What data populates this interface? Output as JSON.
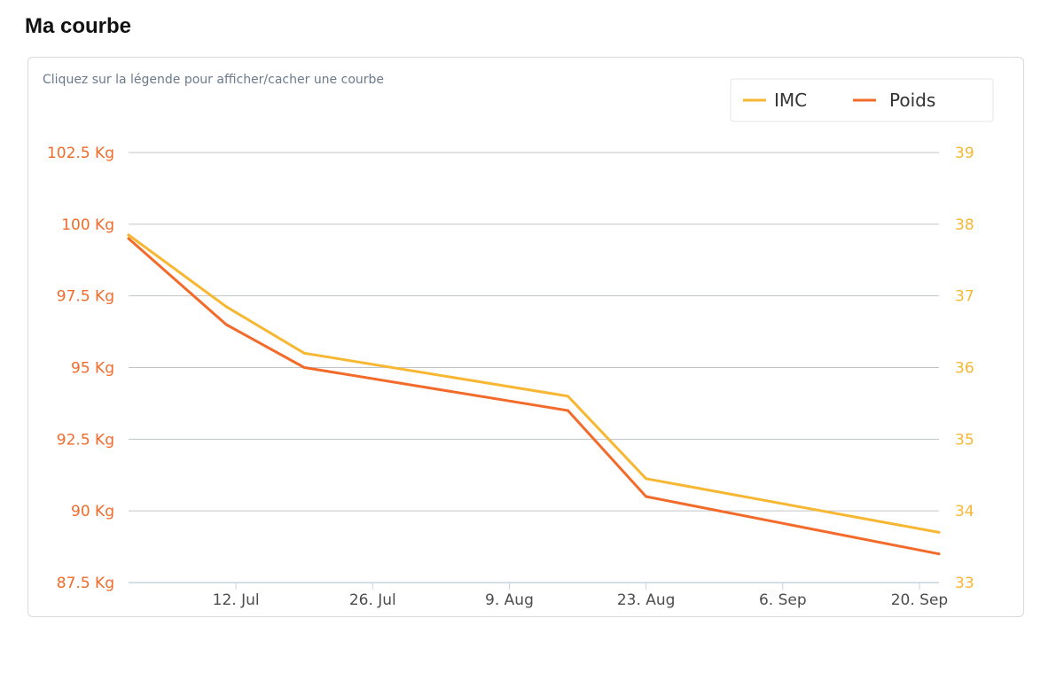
{
  "page": {
    "title": "Ma courbe"
  },
  "chart_data": {
    "type": "line",
    "hint": "Cliquez sur la légende pour afficher/cacher une courbe",
    "grid": true,
    "legend_position": "top-right",
    "x_ticks": [
      "12. Jul",
      "26. Jul",
      "9. Aug",
      "23. Aug",
      "6. Sep",
      "20. Sep"
    ],
    "x_tick_dates": [
      "2014-07-12",
      "2014-07-26",
      "2014-08-09",
      "2014-08-23",
      "2014-09-06",
      "2014-09-20"
    ],
    "xlim": [
      "2014-07-01",
      "2014-09-22"
    ],
    "y_left": {
      "ylim": [
        87.5,
        102.5
      ],
      "tick_values": [
        87.5,
        90,
        92.5,
        95,
        97.5,
        100,
        102.5
      ],
      "tick_labels": [
        "87.5 Kg",
        "90 Kg",
        "92.5 Kg",
        "95 Kg",
        "97.5 Kg",
        "100 Kg",
        "102.5 Kg"
      ],
      "color": "#f26b2a"
    },
    "y_right": {
      "ylim": [
        33,
        39
      ],
      "tick_values": [
        33,
        34,
        35,
        36,
        37,
        38,
        39
      ],
      "tick_labels": [
        "33",
        "34",
        "35",
        "36",
        "37",
        "38",
        "39"
      ],
      "color": "#f7b733"
    },
    "series": [
      {
        "name": "IMC",
        "axis": "right",
        "color": "#f7b733",
        "x": [
          "2014-07-01",
          "2014-07-11",
          "2014-07-19",
          "2014-08-15",
          "2014-08-23",
          "2014-09-22"
        ],
        "values": [
          37.85,
          36.85,
          36.2,
          35.6,
          34.45,
          33.7
        ]
      },
      {
        "name": "Poids",
        "axis": "left",
        "color": "#f26b2a",
        "x": [
          "2014-07-01",
          "2014-07-11",
          "2014-07-19",
          "2014-08-15",
          "2014-08-23",
          "2014-09-22"
        ],
        "values": [
          99.5,
          96.5,
          95.0,
          93.5,
          90.5,
          88.5
        ]
      }
    ]
  }
}
